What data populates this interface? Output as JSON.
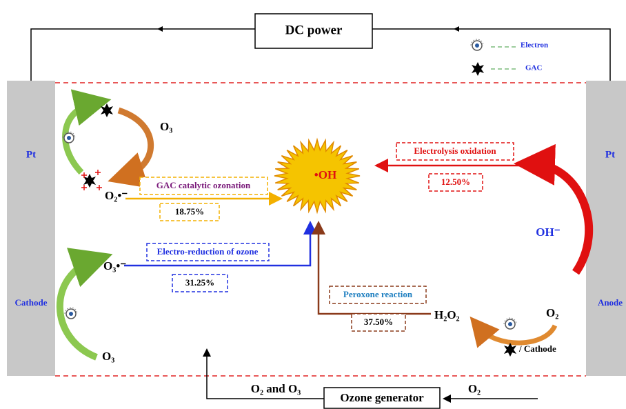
{
  "power": {
    "label": "DC power"
  },
  "legend": [
    {
      "label": "Electron"
    },
    {
      "label": "GAC"
    }
  ],
  "electrodes": {
    "left_top": "Pt",
    "right_top": "Pt",
    "left_bottom": "Cathode",
    "right_bottom": "Anode"
  },
  "center": "•OH",
  "pathways": [
    {
      "name": "GAC catalytic ozonation",
      "share": "18.75%"
    },
    {
      "name": "Electrolysis oxidation",
      "share": "12.50%"
    },
    {
      "name": "Electro-reduction of ozone",
      "share": "31.25%"
    },
    {
      "name": "Peroxone reaction",
      "share": "37.50%"
    }
  ],
  "species": {
    "o3_top": "O₃",
    "superoxide": "O₂•⁻",
    "ozonide": "O₃•⁻",
    "o3_bottom": "O₃",
    "hydroxide": "OH⁻",
    "h2o2": "H₂O₂",
    "o2_right": "O₂",
    "cathode_note": "/ Cathode"
  },
  "feed": {
    "generator": "Ozone generator",
    "input": "O₂",
    "output": "O₂ and O₃"
  }
}
